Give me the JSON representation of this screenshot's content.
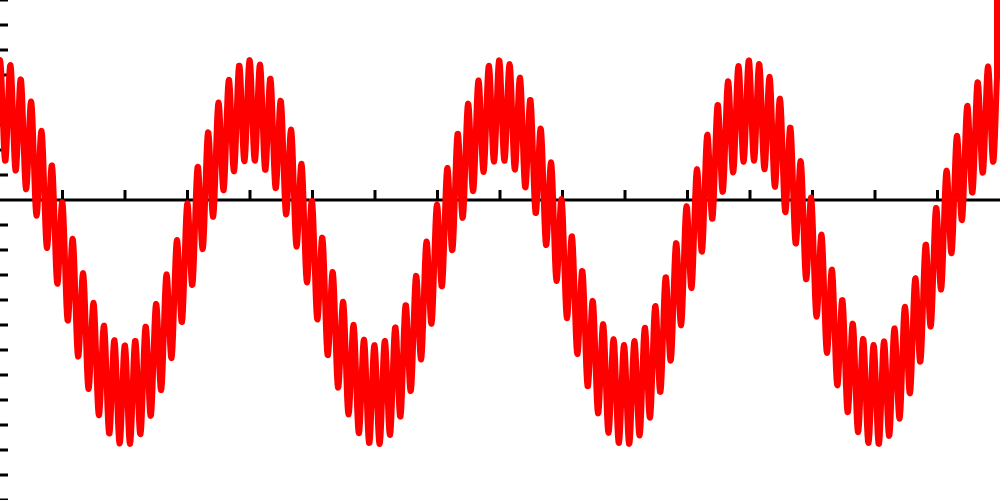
{
  "chart_data": {
    "type": "line",
    "title": "",
    "xlabel": "",
    "ylabel": "",
    "xlim": [
      0,
      1000
    ],
    "ylim": [
      -6,
      4
    ],
    "grid": false,
    "legend": "none",
    "y_tick_step": 0.5,
    "x_tick_step": 62.5,
    "series": [
      {
        "color": "#ff0000",
        "components": [
          {
            "amplitude": 2.85,
            "period": 250,
            "phase_shift": 0
          },
          {
            "amplitude": 1.0,
            "period": 10.4,
            "phase_shift": 0
          }
        ],
        "offset": -1.05,
        "x_start": 0,
        "x_end": 997,
        "final_spike_to": 4
      }
    ],
    "colors": {
      "axis": "#000000",
      "line": "#ff0000",
      "background": "#ffffff"
    }
  }
}
